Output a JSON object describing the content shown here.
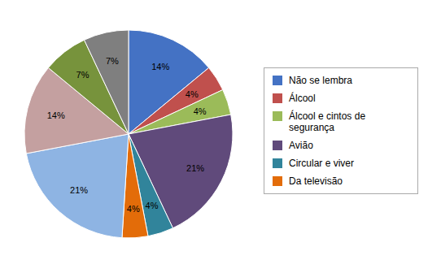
{
  "chart_data": {
    "type": "pie",
    "categories": [
      "Não se lembra",
      "Álcool",
      "Álcool e cintos de\nsegurança",
      "Avião",
      "Circular e viver",
      "Da televisão",
      null,
      null,
      null,
      null
    ],
    "values": [
      14,
      4,
      4,
      21,
      4,
      4,
      21,
      14,
      7,
      7
    ],
    "value_labels": [
      "14%",
      "4%",
      "4%",
      "21%",
      "4%",
      "4%",
      "21%",
      "14%",
      "7%",
      "7%"
    ],
    "colors": [
      "#4472C4",
      "#C0504D",
      "#9BBB59",
      "#604A7B",
      "#31849B",
      "#E36C09",
      "#8EB4E3",
      "#C4A0A0",
      "#77933C",
      "#7F7F7F"
    ],
    "data_labels": true,
    "legend": "right"
  }
}
